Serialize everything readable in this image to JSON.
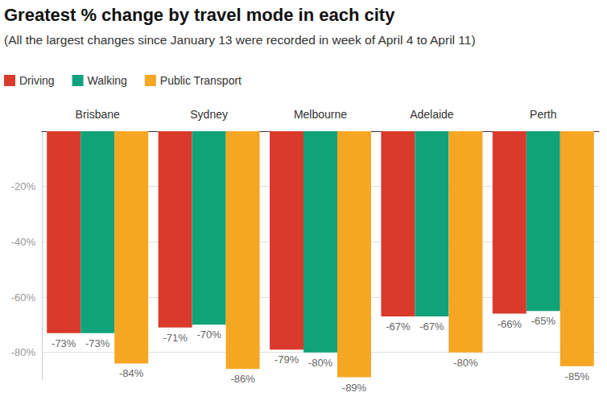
{
  "chart_data": {
    "type": "bar",
    "title": "Greatest % change by travel mode in each city",
    "subtitle": "(All the largest changes since January 13 were recorded in week of April 4 to April 11)",
    "categories": [
      "Brisbane",
      "Sydney",
      "Melbourne",
      "Adelaide",
      "Perth"
    ],
    "series": [
      {
        "name": "Driving",
        "color": "#d93a2b",
        "values": [
          -73,
          -71,
          -79,
          -67,
          -66
        ],
        "value_labels": [
          "-73%",
          "-71%",
          "-79%",
          "-67%",
          "-66%"
        ]
      },
      {
        "name": "Walking",
        "color": "#10a37a",
        "values": [
          -73,
          -70,
          -80,
          -67,
          -65
        ],
        "value_labels": [
          "-73%",
          "-70%",
          "-80%",
          "-67%",
          "-65%"
        ]
      },
      {
        "name": "Public Transport",
        "color": "#f5a623",
        "values": [
          -84,
          -86,
          -89,
          -80,
          -85
        ],
        "value_labels": [
          "-84%",
          "-86%",
          "-89%",
          "-80%",
          "-85%"
        ]
      }
    ],
    "ylim": [
      -90,
      0
    ],
    "yticks": [
      {
        "value": -80,
        "label": "-80%"
      },
      {
        "value": -60,
        "label": "-60%"
      },
      {
        "value": -40,
        "label": "-40%"
      },
      {
        "value": -20,
        "label": "-20%"
      }
    ],
    "grid": true,
    "legend": "top-left",
    "data_labels": true
  }
}
